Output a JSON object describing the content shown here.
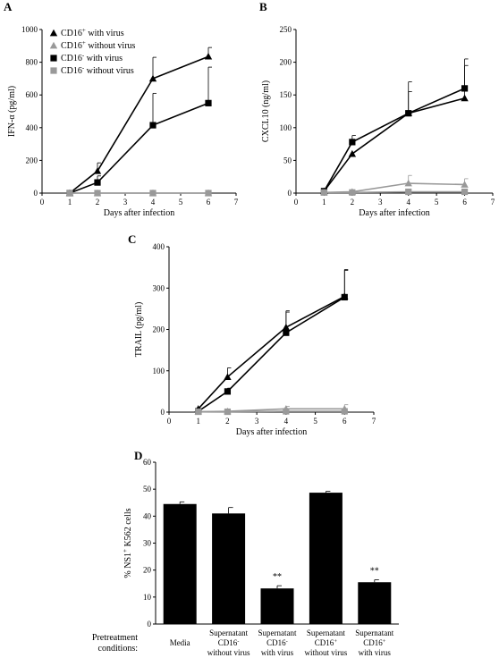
{
  "chart_data": [
    {
      "panel": "A",
      "type": "line",
      "xlabel": "Days after infection",
      "ylabel": "IFN-α (pg/ml)",
      "xlim": [
        0,
        7
      ],
      "ylim": [
        0,
        1000
      ],
      "xticks": [
        0,
        1,
        2,
        3,
        4,
        5,
        6,
        7
      ],
      "yticks": [
        0,
        200,
        400,
        600,
        800,
        1000
      ],
      "legend": "top-left",
      "series": [
        {
          "name": "CD16+ with virus",
          "name_base": "CD16",
          "name_sup": "+",
          "name_rest": " with virus",
          "marker": "triangle",
          "color": "#000000",
          "x": [
            1,
            2,
            4,
            6
          ],
          "y": [
            0,
            135,
            700,
            835
          ],
          "err": [
            0,
            50,
            130,
            55
          ]
        },
        {
          "name": "CD16+ without virus",
          "name_base": "CD16",
          "name_sup": "+",
          "name_rest": " without virus",
          "marker": "triangle",
          "color": "#999999",
          "x": [
            1,
            2,
            4,
            6
          ],
          "y": [
            0,
            0,
            0,
            0
          ],
          "err": [
            0,
            0,
            0,
            0
          ]
        },
        {
          "name": "CD16- with virus",
          "name_base": "CD16",
          "name_sup": "-",
          "name_rest": " with virus",
          "marker": "square",
          "color": "#000000",
          "x": [
            1,
            2,
            4,
            6
          ],
          "y": [
            0,
            65,
            415,
            550
          ],
          "err": [
            0,
            40,
            195,
            220
          ]
        },
        {
          "name": "CD16- without virus",
          "name_base": "CD16",
          "name_sup": "-",
          "name_rest": " without virus",
          "marker": "square",
          "color": "#999999",
          "x": [
            1,
            2,
            4,
            6
          ],
          "y": [
            0,
            0,
            0,
            0
          ],
          "err": [
            0,
            0,
            0,
            0
          ]
        }
      ]
    },
    {
      "panel": "B",
      "type": "line",
      "xlabel": "Days after infection",
      "ylabel": "CXCL10 (ng/ml)",
      "xlim": [
        0,
        7
      ],
      "ylim": [
        0,
        250
      ],
      "xticks": [
        0,
        1,
        2,
        3,
        4,
        5,
        6,
        7
      ],
      "yticks": [
        0,
        50,
        100,
        150,
        200,
        250
      ],
      "series": [
        {
          "marker": "triangle",
          "color": "#000000",
          "x": [
            1,
            2,
            4,
            6
          ],
          "y": [
            3,
            60,
            122,
            145
          ],
          "err": [
            0,
            0,
            48,
            50
          ]
        },
        {
          "marker": "square",
          "color": "#000000",
          "x": [
            1,
            2,
            4,
            6
          ],
          "y": [
            3,
            78,
            122,
            160
          ],
          "err": [
            0,
            10,
            33,
            45
          ]
        },
        {
          "marker": "triangle",
          "color": "#999999",
          "x": [
            1,
            2,
            4,
            6
          ],
          "y": [
            1,
            2,
            15,
            13
          ],
          "err": [
            0,
            0,
            12,
            9
          ]
        },
        {
          "marker": "square",
          "color": "#999999",
          "x": [
            1,
            2,
            4,
            6
          ],
          "y": [
            1,
            1,
            2,
            2
          ],
          "err": [
            0,
            0,
            0,
            0
          ]
        }
      ]
    },
    {
      "panel": "C",
      "type": "line",
      "xlabel": "Days after infection",
      "ylabel": "TRAIL (pg/ml)",
      "xlim": [
        0,
        7
      ],
      "ylim": [
        0,
        400
      ],
      "xticks": [
        0,
        1,
        2,
        3,
        4,
        5,
        6,
        7
      ],
      "yticks": [
        0,
        100,
        200,
        300,
        400
      ],
      "series": [
        {
          "marker": "triangle",
          "color": "#000000",
          "x": [
            1,
            2,
            4,
            6
          ],
          "y": [
            8,
            85,
            205,
            280
          ],
          "err": [
            0,
            22,
            40,
            65
          ]
        },
        {
          "marker": "square",
          "color": "#000000",
          "x": [
            1,
            2,
            4,
            6
          ],
          "y": [
            2,
            50,
            192,
            278
          ],
          "err": [
            0,
            8,
            50,
            65
          ]
        },
        {
          "marker": "triangle",
          "color": "#999999",
          "x": [
            1,
            2,
            4,
            6
          ],
          "y": [
            1,
            2,
            8,
            8
          ],
          "err": [
            0,
            0,
            6,
            10
          ]
        },
        {
          "marker": "square",
          "color": "#999999",
          "x": [
            1,
            2,
            4,
            6
          ],
          "y": [
            1,
            1,
            2,
            2
          ],
          "err": [
            0,
            0,
            0,
            0
          ]
        }
      ]
    },
    {
      "panel": "D",
      "type": "bar",
      "ylabel_pre": "% NS1",
      "ylabel_sup": "+",
      "ylabel_post": " K562 cells",
      "ylabel": "% NS1+ K562 cells",
      "ylim": [
        0,
        60
      ],
      "yticks": [
        0,
        10,
        20,
        30,
        40,
        50,
        60
      ],
      "conditions_label": [
        "Pretreatment",
        "conditions:"
      ],
      "categories": [
        {
          "line1": "Media",
          "line2": "",
          "line2_sup": "",
          "line3": ""
        },
        {
          "line1": "Supernatant",
          "line2": "CD16",
          "line2_sup": "-",
          "line3": "without virus"
        },
        {
          "line1": "Supernatant",
          "line2": "CD16",
          "line2_sup": "-",
          "line3": "with virus"
        },
        {
          "line1": "Supernatant",
          "line2": "CD16",
          "line2_sup": "+",
          "line3": "without virus"
        },
        {
          "line1": "Supernatant",
          "line2": "CD16",
          "line2_sup": "+",
          "line3": "with virus"
        }
      ],
      "values": [
        44.5,
        41,
        13.2,
        48.7,
        15.5
      ],
      "err": [
        0.8,
        2.2,
        1.0,
        0.5,
        0.9
      ],
      "annotations": [
        "",
        "",
        "**",
        "",
        "**"
      ]
    }
  ]
}
